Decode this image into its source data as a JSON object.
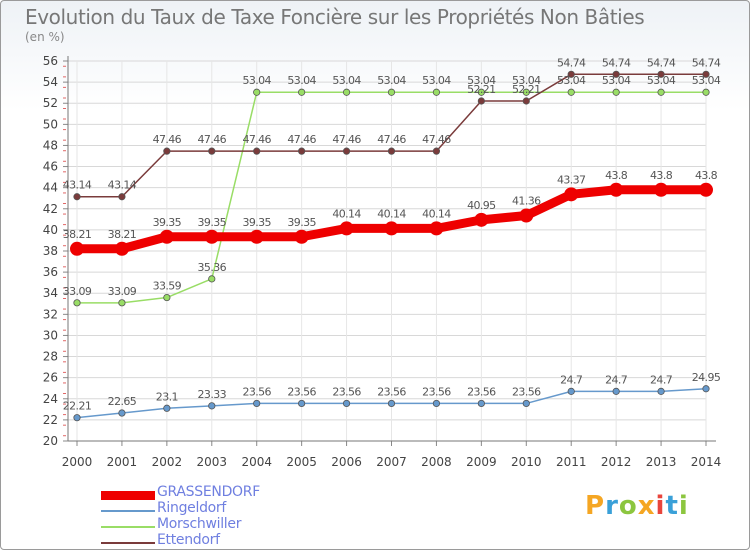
{
  "chart_data": {
    "type": "line",
    "title": "Evolution du Taux de Taxe Foncière sur les Propriétés Non Bâties",
    "ylabel": "(en %)",
    "xlabel": "",
    "x": [
      "2000",
      "2001",
      "2002",
      "2003",
      "2004",
      "2005",
      "2006",
      "2007",
      "2008",
      "2009",
      "2010",
      "2011",
      "2012",
      "2013",
      "2014"
    ],
    "ylim": [
      20,
      56
    ],
    "yticks": [
      20,
      22,
      24,
      26,
      28,
      30,
      32,
      34,
      36,
      38,
      40,
      42,
      44,
      46,
      48,
      50,
      52,
      54,
      56
    ],
    "series": [
      {
        "name": "GRASSENDORF",
        "color": "#ee0000",
        "width": 9,
        "values": [
          38.21,
          38.21,
          39.35,
          39.35,
          39.35,
          39.35,
          40.14,
          40.14,
          40.14,
          40.95,
          41.36,
          43.37,
          43.8,
          43.8,
          43.8
        ],
        "labels": [
          "38.21",
          "38.21",
          "39.35",
          "39.35",
          "39.35",
          "39.35",
          "40.14",
          "40.14",
          "40.14",
          "40.95",
          "41.36",
          "43.37",
          "43.8",
          "43.8",
          "43.8"
        ]
      },
      {
        "name": "Ringeldorf",
        "color": "#6699cc",
        "width": 1.5,
        "values": [
          22.21,
          22.65,
          23.1,
          23.33,
          23.56,
          23.56,
          23.56,
          23.56,
          23.56,
          23.56,
          23.56,
          24.7,
          24.7,
          24.7,
          24.95
        ],
        "labels": [
          "22.21",
          "22.65",
          "23.1",
          "23.33",
          "23.56",
          "23.56",
          "23.56",
          "23.56",
          "23.56",
          "23.56",
          "23.56",
          "24.7",
          "24.7",
          "24.7",
          "24.95"
        ]
      },
      {
        "name": "Morschwiller",
        "color": "#99dd66",
        "width": 1.5,
        "values": [
          33.09,
          33.09,
          33.59,
          35.36,
          53.04,
          53.04,
          53.04,
          53.04,
          53.04,
          53.04,
          53.04,
          53.04,
          53.04,
          53.04,
          53.04
        ],
        "labels": [
          "33.09",
          "33.09",
          "33.59",
          "35.36",
          "53.04",
          "53.04",
          "53.04",
          "53.04",
          "53.04",
          "53.04",
          "53.04",
          "53.04",
          "53.04",
          "53.04",
          "53.04"
        ]
      },
      {
        "name": "Ettendorf",
        "color": "#7a3b3b",
        "width": 1.5,
        "values": [
          43.14,
          43.14,
          47.46,
          47.46,
          47.46,
          47.46,
          47.46,
          47.46,
          47.46,
          52.21,
          52.21,
          54.74,
          54.74,
          54.74,
          54.74
        ],
        "labels": [
          "43.14",
          "43.14",
          "47.46",
          "47.46",
          "47.46",
          "47.46",
          "47.46",
          "47.46",
          "47.46",
          "52.21",
          "52.21",
          "54.74",
          "54.74",
          "54.74",
          "54.74"
        ]
      }
    ]
  },
  "brand": {
    "letters": [
      "P",
      "r",
      "o",
      "x",
      "i",
      "t",
      "i"
    ],
    "colors": [
      "#f5a623",
      "#3aa0d8",
      "#8cc63f",
      "#f5a623",
      "#e8453c",
      "#3aa0d8",
      "#8cc63f"
    ]
  }
}
